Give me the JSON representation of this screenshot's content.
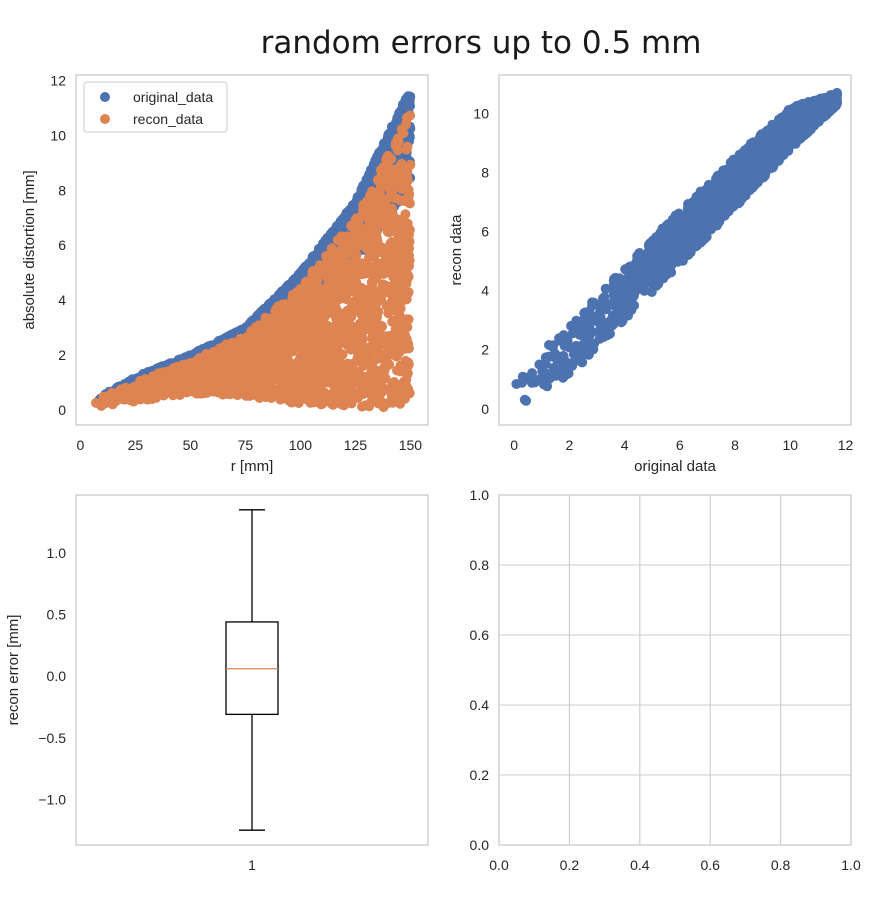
{
  "suptitle": "random errors up to 0.5 mm",
  "colors": {
    "original": "#4c72b0",
    "recon": "#dd8452",
    "median": "#dd8452",
    "frame": "#cccccc",
    "grid": "#cccccc"
  },
  "chart_data": [
    {
      "type": "scatter",
      "position": "top-left",
      "xlabel": "r [mm]",
      "ylabel": "absolute distortion [mm]",
      "xlim": [
        -2,
        158
      ],
      "ylim": [
        -0.55,
        12.2
      ],
      "xticks": [
        0,
        25,
        50,
        75,
        100,
        125,
        150
      ],
      "yticks": [
        0,
        2,
        4,
        6,
        8,
        10,
        12
      ],
      "grid": false,
      "legend_position": "top-left",
      "series": [
        {
          "name": "original_data",
          "color": "#4c72b0",
          "x_range": [
            5,
            150
          ],
          "upper_envelope": {
            "x": [
              5,
              25,
              50,
              75,
              100,
              125,
              150
            ],
            "y": [
              0.3,
              1.2,
              2.0,
              3.0,
              5.0,
              7.6,
              11.7
            ]
          },
          "lower_envelope": {
            "x": [
              5,
              25,
              50,
              75,
              100,
              125,
              150
            ],
            "y": [
              0.05,
              0.1,
              0.4,
              0.25,
              0.05,
              0.05,
              0.05
            ]
          }
        },
        {
          "name": "recon_data",
          "color": "#dd8452",
          "x_range": [
            5,
            150
          ],
          "upper_envelope": {
            "x": [
              5,
              25,
              50,
              75,
              100,
              125,
              150
            ],
            "y": [
              0.3,
              1.0,
              1.8,
              2.7,
              4.5,
              7.0,
              10.9
            ]
          },
          "lower_envelope": {
            "x": [
              5,
              25,
              50,
              75,
              100,
              125,
              150
            ],
            "y": [
              0.05,
              0.3,
              0.6,
              0.5,
              0.2,
              0.1,
              0.1
            ]
          }
        }
      ]
    },
    {
      "type": "scatter",
      "position": "top-right",
      "xlabel": "original data",
      "ylabel": "recon data",
      "xlim": [
        -0.55,
        12.2
      ],
      "ylim": [
        -0.55,
        11.3
      ],
      "xticks": [
        0,
        2,
        4,
        6,
        8,
        10,
        12
      ],
      "yticks": [
        0,
        2,
        4,
        6,
        8,
        10
      ],
      "grid": false,
      "series": [
        {
          "name": "",
          "color": "#4c72b0",
          "x_range": [
            0,
            11.7
          ],
          "relation": "y ≈ 0.92·x ± 0.6",
          "band": {
            "x": [
              0,
              2,
              4,
              6,
              8,
              10,
              11.7
            ],
            "y_low": [
              0.0,
              1.1,
              3.0,
              4.9,
              6.8,
              8.8,
              10.3
            ],
            "y_high": [
              1.1,
              2.8,
              4.8,
              6.7,
              8.5,
              10.2,
              10.7
            ]
          }
        }
      ]
    },
    {
      "type": "box",
      "position": "bottom-left",
      "xlabel": "",
      "ylabel": "recon error [mm]",
      "ylim": [
        -1.37,
        1.47
      ],
      "yticks": [
        1.0,
        0.5,
        0.0,
        -0.5,
        -1.0
      ],
      "ytick_labels": [
        "1.0",
        "0.5",
        "0.0",
        "−0.5",
        "−1.0"
      ],
      "xticks": [
        1
      ],
      "xtick_labels": [
        "1"
      ],
      "grid": false,
      "box": {
        "whisker_high": 1.35,
        "q3": 0.44,
        "median": 0.06,
        "q1": -0.31,
        "whisker_low": -1.25
      }
    },
    {
      "type": "empty",
      "position": "bottom-right",
      "xlim": [
        0,
        1
      ],
      "ylim": [
        0,
        1
      ],
      "xticks": [
        0.0,
        0.2,
        0.4,
        0.6,
        0.8,
        1.0
      ],
      "yticks": [
        0.0,
        0.2,
        0.4,
        0.6,
        0.8,
        1.0
      ],
      "xtick_labels": [
        "0.0",
        "0.2",
        "0.4",
        "0.6",
        "0.8",
        "1.0"
      ],
      "ytick_labels": [
        "0.0",
        "0.2",
        "0.4",
        "0.6",
        "0.8",
        "1.0"
      ],
      "grid": true
    }
  ]
}
